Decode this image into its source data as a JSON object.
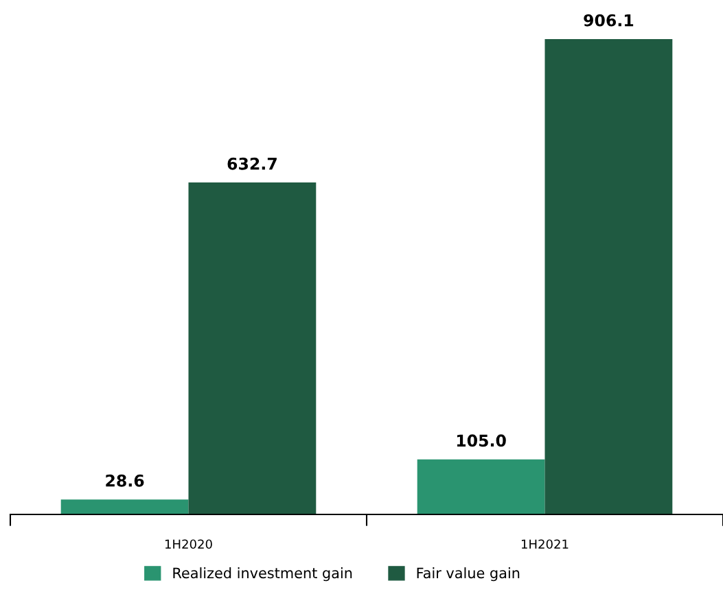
{
  "chart_data": {
    "type": "bar",
    "categories": [
      "1H2020",
      "1H2021"
    ],
    "series": [
      {
        "name": "Realized investment gain",
        "color": "#2a9470",
        "values": [
          28.6,
          105.0
        ],
        "value_labels": [
          "28.6",
          "105.0"
        ]
      },
      {
        "name": "Fair value gain",
        "color": "#1f5a41",
        "values": [
          632.7,
          906.1
        ],
        "value_labels": [
          "632.7",
          "906.1"
        ]
      }
    ],
    "legend": "bottom",
    "grid": false
  }
}
